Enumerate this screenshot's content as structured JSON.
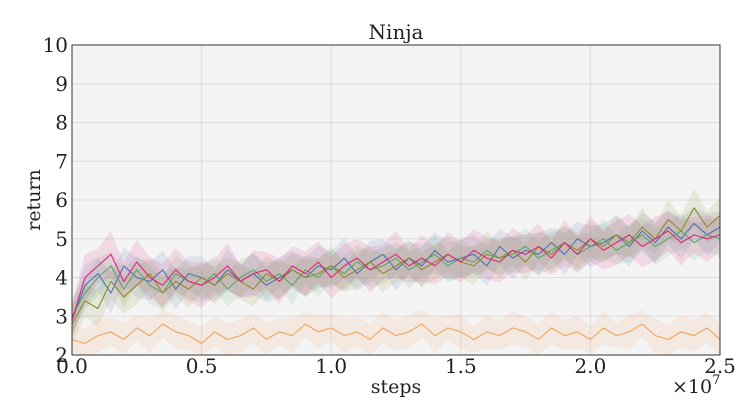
{
  "chart_data": {
    "type": "line",
    "title": "Ninja",
    "xlabel": "steps",
    "ylabel": "return",
    "x_multiplier_label": "×10",
    "x_multiplier_exponent": "7",
    "xlim": [
      0,
      25000000
    ],
    "ylim": [
      2,
      10
    ],
    "grid": true,
    "legend": "none",
    "background": "#f4f4f4",
    "x_ticks": [
      0,
      5000000,
      10000000,
      15000000,
      20000000,
      25000000
    ],
    "x_tick_labels": [
      "0.0",
      "0.5",
      "1.0",
      "1.5",
      "2.0",
      "2.5"
    ],
    "y_ticks": [
      2,
      3,
      4,
      5,
      6,
      7,
      8,
      9,
      10
    ],
    "y_tick_labels": [
      "2",
      "3",
      "4",
      "5",
      "6",
      "7",
      "8",
      "9",
      "10"
    ],
    "x": [
      0,
      500000,
      1000000,
      1500000,
      2000000,
      2500000,
      3000000,
      3500000,
      4000000,
      4500000,
      5000000,
      5500000,
      6000000,
      6500000,
      7000000,
      7500000,
      8000000,
      8500000,
      9000000,
      9500000,
      10000000,
      10500000,
      11000000,
      11500000,
      12000000,
      12500000,
      13000000,
      13500000,
      14000000,
      14500000,
      15000000,
      15500000,
      16000000,
      16500000,
      17000000,
      17500000,
      18000000,
      18500000,
      19000000,
      19500000,
      20000000,
      20500000,
      21000000,
      21500000,
      22000000,
      22500000,
      23000000,
      23500000,
      24000000,
      24500000,
      25000000
    ],
    "series": [
      {
        "color": "#4c72b0",
        "band": 0.55,
        "values": [
          2.9,
          3.8,
          4.1,
          3.6,
          4.3,
          4.0,
          3.9,
          4.2,
          3.7,
          4.1,
          4.0,
          3.8,
          4.2,
          3.9,
          4.1,
          3.8,
          4.0,
          4.2,
          4.0,
          4.3,
          4.2,
          4.5,
          4.1,
          4.4,
          4.6,
          4.2,
          4.5,
          4.3,
          4.7,
          4.4,
          4.5,
          4.6,
          4.3,
          4.8,
          4.5,
          4.7,
          4.6,
          4.9,
          4.6,
          5.0,
          4.8,
          4.9,
          5.1,
          4.8,
          5.2,
          4.9,
          5.3,
          5.0,
          5.4,
          5.1,
          5.3
        ]
      },
      {
        "color": "#55a868",
        "band": 0.5,
        "values": [
          3.0,
          3.6,
          4.0,
          4.3,
          3.7,
          4.2,
          3.8,
          3.6,
          4.1,
          3.9,
          3.8,
          4.1,
          3.7,
          4.0,
          4.2,
          3.9,
          4.1,
          3.8,
          4.2,
          4.0,
          4.3,
          4.1,
          4.4,
          4.2,
          4.3,
          4.5,
          4.2,
          4.4,
          4.6,
          4.3,
          4.5,
          4.4,
          4.7,
          4.5,
          4.6,
          4.8,
          4.5,
          4.7,
          4.9,
          4.6,
          4.8,
          5.0,
          4.7,
          4.9,
          5.1,
          4.8,
          5.0,
          5.2,
          4.9,
          5.1,
          5.0
        ]
      },
      {
        "color": "#8c8c2a",
        "band": 0.5,
        "values": [
          2.8,
          3.4,
          3.2,
          3.9,
          3.5,
          3.8,
          4.1,
          3.6,
          3.9,
          3.7,
          4.0,
          3.8,
          4.1,
          3.9,
          3.7,
          4.1,
          3.9,
          4.2,
          4.0,
          4.1,
          4.3,
          4.0,
          4.2,
          4.4,
          4.1,
          4.3,
          4.5,
          4.2,
          4.4,
          4.6,
          4.4,
          4.3,
          4.6,
          4.5,
          4.7,
          4.4,
          4.8,
          4.6,
          4.9,
          4.7,
          5.0,
          4.8,
          5.1,
          4.9,
          5.3,
          5.0,
          5.5,
          5.2,
          5.8,
          5.3,
          5.6
        ]
      },
      {
        "color": "#e0257a",
        "band": 0.6,
        "values": [
          2.9,
          4.0,
          4.3,
          4.6,
          3.9,
          4.4,
          4.0,
          3.8,
          4.2,
          3.9,
          3.8,
          4.0,
          4.3,
          3.9,
          4.1,
          4.2,
          3.9,
          4.3,
          4.1,
          4.4,
          4.0,
          4.3,
          4.5,
          4.2,
          4.4,
          4.6,
          4.3,
          4.5,
          4.3,
          4.6,
          4.4,
          4.7,
          4.5,
          4.4,
          4.7,
          4.6,
          4.8,
          4.5,
          4.9,
          4.6,
          5.0,
          4.7,
          4.9,
          5.1,
          4.8,
          5.0,
          5.2,
          4.9,
          5.1,
          5.0,
          5.1
        ]
      },
      {
        "color": "#f5a35c",
        "band": 0.45,
        "values": [
          2.4,
          2.3,
          2.5,
          2.6,
          2.4,
          2.7,
          2.5,
          2.8,
          2.6,
          2.5,
          2.3,
          2.6,
          2.4,
          2.5,
          2.7,
          2.4,
          2.6,
          2.5,
          2.8,
          2.6,
          2.7,
          2.5,
          2.6,
          2.4,
          2.7,
          2.5,
          2.6,
          2.8,
          2.5,
          2.7,
          2.6,
          2.4,
          2.6,
          2.5,
          2.7,
          2.6,
          2.4,
          2.7,
          2.5,
          2.6,
          2.4,
          2.7,
          2.5,
          2.6,
          2.8,
          2.5,
          2.4,
          2.6,
          2.5,
          2.7,
          2.4
        ]
      }
    ]
  }
}
